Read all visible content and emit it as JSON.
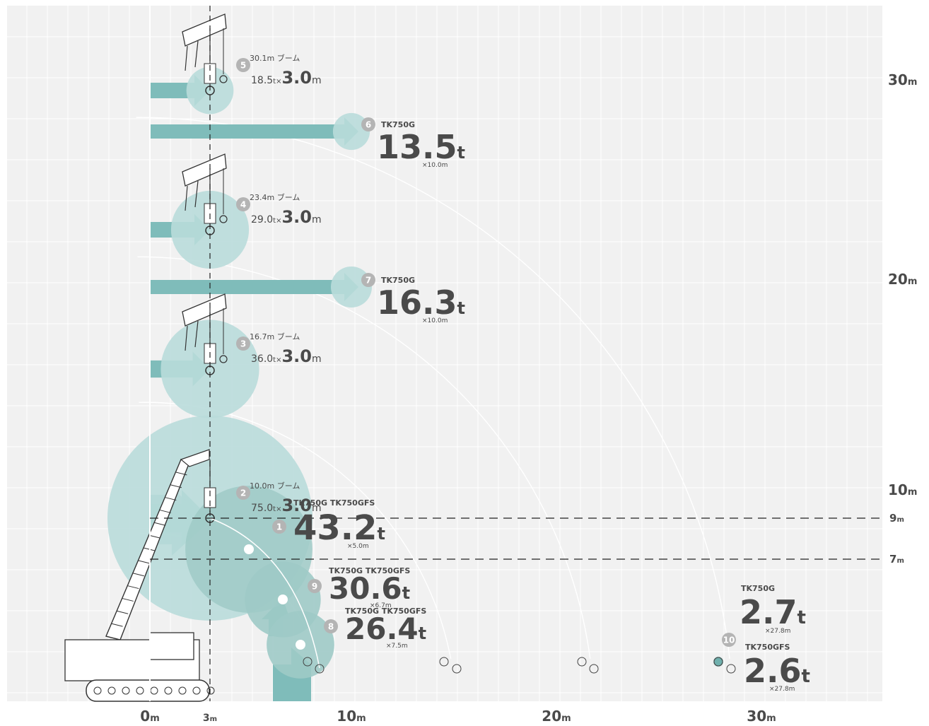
{
  "chart_data": {
    "type": "scatter",
    "xunit": "m",
    "yunit": "m",
    "xlim": [
      -7,
      36
    ],
    "ylim": [
      -1,
      34
    ],
    "x_ticks": [
      {
        "value": 0,
        "label": "0",
        "unit": "m"
      },
      {
        "value": 3,
        "label": "3",
        "unit": "m"
      },
      {
        "value": 10,
        "label": "10",
        "unit": "m"
      },
      {
        "value": 20,
        "label": "20",
        "unit": "m"
      },
      {
        "value": 30,
        "label": "30",
        "unit": "m"
      }
    ],
    "y_ticks": [
      {
        "value": 10,
        "label": "10",
        "unit": "m"
      },
      {
        "value": 20,
        "label": "20",
        "unit": "m"
      },
      {
        "value": 30,
        "label": "30",
        "unit": "m"
      }
    ],
    "ref_lines": [
      {
        "value": 9,
        "label": "9",
        "unit": "m"
      },
      {
        "value": 7,
        "label": "7",
        "unit": "m"
      }
    ],
    "grid": true,
    "colors": {
      "background": "#f1f1f1",
      "grid": "#ffffff",
      "arrow": "#7fbcba",
      "circle_light": "#b9dcda",
      "circle_mid": "#9fcac7",
      "text": "#4a4a4a",
      "badge": "#b4b4b4"
    },
    "points": [
      {
        "no": "5",
        "type": "boom",
        "x": 3,
        "y": 29.7,
        "boom": "30.1m",
        "boom_suffix": "ブーム",
        "load": "18.5",
        "load_unit": "t×",
        "radius": "3.0",
        "radius_unit": "m",
        "size": 1.15
      },
      {
        "no": "4",
        "type": "boom",
        "x": 3,
        "y": 23.2,
        "boom": "23.4m",
        "boom_suffix": "ブーム",
        "load": "29.0",
        "load_unit": "t×",
        "radius": "3.0",
        "radius_unit": "m",
        "size": 1.9
      },
      {
        "no": "3",
        "type": "boom",
        "x": 3,
        "y": 16.2,
        "boom": "16.7m",
        "boom_suffix": "ブーム",
        "load": "36.0",
        "load_unit": "t×",
        "radius": "3.0",
        "radius_unit": "m",
        "size": 2.4
      },
      {
        "no": "2",
        "type": "boom",
        "x": 3,
        "y": 9.0,
        "boom": "10.0m",
        "boom_suffix": "ブーム",
        "load": "75.0",
        "load_unit": "t×",
        "radius": "3.0",
        "radius_unit": "m",
        "size": 5.0
      },
      {
        "no": "6",
        "type": "jib",
        "x": 10,
        "y": 27.3,
        "models": "TK750G",
        "load": "13.5",
        "load_unit": "t",
        "radius_note": "×10.0m",
        "size": 0.9
      },
      {
        "no": "7",
        "type": "jib",
        "x": 10,
        "y": 19.8,
        "models": "TK750G",
        "load": "16.3",
        "load_unit": "t",
        "radius_note": "×10.0m",
        "size": 1.0
      },
      {
        "no": "1",
        "type": "big",
        "x": 5,
        "y": 7.6,
        "models": "TK750G TK750GFS",
        "load": "43.2",
        "load_unit": "t",
        "radius_note": "×5.0m",
        "size": 3.1
      },
      {
        "no": "9",
        "type": "mid",
        "x": 6.7,
        "y": 5.0,
        "models": "TK750G TK750GFS",
        "load": "30.6",
        "load_unit": "t",
        "radius_note": "×6.7m",
        "size": 1.85
      },
      {
        "no": "8",
        "type": "mid",
        "x": 7.5,
        "y": 3.5,
        "models": "TK750G TK750GFS",
        "load": "26.4",
        "load_unit": "t",
        "radius_note": "×7.5m",
        "size": 1.65
      },
      {
        "no": "10",
        "type": "far",
        "x": 27.8,
        "y": 0.95,
        "size": 0.25
      }
    ],
    "far_labels": [
      {
        "model": "TK750G",
        "load": "2.7",
        "load_unit": "t",
        "radius_note": "×27.8m"
      },
      {
        "model": "TK750GFS",
        "load": "2.6",
        "load_unit": "t",
        "radius_note": "×27.8m"
      }
    ],
    "boom_tips": [
      {
        "x": 8.0,
        "y": 1.8,
        "r": 8.8
      },
      {
        "x": 14.4,
        "y": 1.8,
        "r": 15.2
      },
      {
        "x": 21.2,
        "y": 1.8,
        "r": 22.3
      },
      {
        "x": 28.0,
        "y": 1.8,
        "r": 29.1
      }
    ]
  }
}
